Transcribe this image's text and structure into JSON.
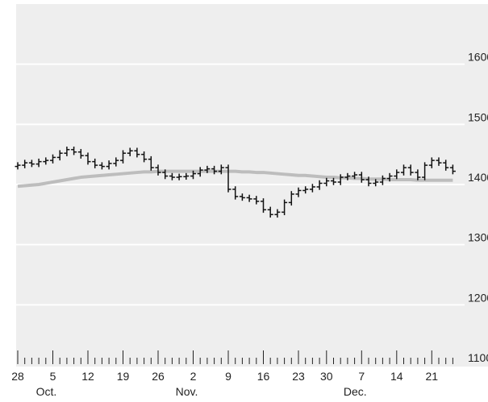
{
  "chart_data": {
    "type": "ohlc",
    "categories": [
      "28",
      null,
      null,
      null,
      null,
      "5",
      null,
      null,
      null,
      null,
      "12",
      null,
      null,
      null,
      null,
      "19",
      null,
      null,
      null,
      null,
      "26",
      null,
      null,
      null,
      null,
      "2",
      null,
      null,
      null,
      null,
      "9",
      null,
      null,
      null,
      null,
      "16",
      null,
      null,
      null,
      null,
      "23",
      null,
      null,
      null,
      "30",
      null,
      null,
      null,
      null,
      "7",
      null,
      null,
      null,
      null,
      "14",
      null,
      null,
      null,
      null,
      "21",
      null,
      null,
      null
    ],
    "months": [
      null,
      null,
      null,
      null,
      null,
      "Oct.",
      null,
      null,
      null,
      null,
      null,
      null,
      null,
      null,
      null,
      null,
      null,
      null,
      null,
      null,
      null,
      null,
      null,
      null,
      null,
      "Nov.",
      null,
      null,
      null,
      null,
      null,
      null,
      null,
      null,
      null,
      null,
      null,
      null,
      null,
      null,
      null,
      null,
      null,
      null,
      null,
      null,
      null,
      null,
      null,
      "Dec.",
      null,
      null,
      null,
      null,
      null,
      null,
      null,
      null,
      null,
      null,
      null,
      null,
      null
    ],
    "open": [
      1430,
      1432,
      1436,
      1434,
      1438,
      1440,
      1445,
      1452,
      1458,
      1454,
      1448,
      1438,
      1432,
      1430,
      1435,
      1440,
      1452,
      1456,
      1450,
      1442,
      1428,
      1420,
      1414,
      1412,
      1413,
      1414,
      1418,
      1424,
      1426,
      1422,
      1428,
      1392,
      1380,
      1378,
      1376,
      1372,
      1358,
      1350,
      1354,
      1370,
      1384,
      1390,
      1392,
      1396,
      1402,
      1406,
      1404,
      1412,
      1414,
      1416,
      1408,
      1402,
      1404,
      1410,
      1414,
      1420,
      1428,
      1420,
      1412,
      1432,
      1440,
      1436,
      1428
    ],
    "high": [
      1437,
      1441,
      1441,
      1443,
      1445,
      1450,
      1457,
      1463,
      1463,
      1459,
      1453,
      1443,
      1437,
      1440,
      1445,
      1457,
      1461,
      1461,
      1455,
      1447,
      1433,
      1425,
      1419,
      1418,
      1419,
      1423,
      1429,
      1431,
      1431,
      1433,
      1433,
      1397,
      1385,
      1383,
      1381,
      1377,
      1363,
      1359,
      1375,
      1389,
      1395,
      1397,
      1401,
      1407,
      1411,
      1411,
      1417,
      1419,
      1421,
      1421,
      1413,
      1409,
      1415,
      1419,
      1425,
      1433,
      1433,
      1425,
      1437,
      1445,
      1445,
      1441,
      1433
    ],
    "low": [
      1425,
      1427,
      1429,
      1429,
      1433,
      1435,
      1440,
      1447,
      1449,
      1443,
      1433,
      1427,
      1425,
      1425,
      1430,
      1435,
      1447,
      1445,
      1437,
      1423,
      1415,
      1409,
      1407,
      1407,
      1408,
      1409,
      1413,
      1419,
      1417,
      1417,
      1387,
      1375,
      1373,
      1371,
      1367,
      1353,
      1345,
      1345,
      1349,
      1365,
      1379,
      1385,
      1387,
      1391,
      1397,
      1399,
      1399,
      1407,
      1409,
      1403,
      1397,
      1397,
      1399,
      1405,
      1409,
      1415,
      1415,
      1407,
      1407,
      1427,
      1431,
      1423,
      1417
    ],
    "close": [
      1432,
      1436,
      1434,
      1438,
      1440,
      1445,
      1452,
      1458,
      1454,
      1448,
      1438,
      1432,
      1430,
      1435,
      1440,
      1452,
      1456,
      1450,
      1442,
      1428,
      1420,
      1414,
      1412,
      1413,
      1414,
      1418,
      1424,
      1426,
      1422,
      1428,
      1392,
      1380,
      1378,
      1376,
      1372,
      1358,
      1350,
      1354,
      1370,
      1384,
      1390,
      1392,
      1396,
      1402,
      1406,
      1404,
      1412,
      1414,
      1416,
      1408,
      1402,
      1404,
      1410,
      1414,
      1420,
      1428,
      1420,
      1412,
      1432,
      1440,
      1436,
      1428,
      1422
    ],
    "moving_average": [
      1397,
      1398,
      1399,
      1400,
      1402,
      1404,
      1406,
      1408,
      1410,
      1412,
      1413,
      1414,
      1415,
      1416,
      1417,
      1418,
      1419,
      1420,
      1421,
      1421,
      1422,
      1422,
      1422,
      1422,
      1422,
      1422,
      1422,
      1422,
      1422,
      1422,
      1422,
      1422,
      1421,
      1421,
      1420,
      1420,
      1419,
      1418,
      1417,
      1416,
      1415,
      1415,
      1414,
      1413,
      1412,
      1412,
      1411,
      1411,
      1410,
      1410,
      1409,
      1409,
      1409,
      1408,
      1408,
      1408,
      1408,
      1407,
      1407,
      1407,
      1407,
      1407,
      1407
    ],
    "bar_color": "#111111",
    "average_color": "#bdbdbd",
    "ylim": [
      1100,
      1700
    ],
    "yticks": [
      1100,
      1200,
      1300,
      1400,
      1500,
      1600
    ],
    "grid": true
  }
}
